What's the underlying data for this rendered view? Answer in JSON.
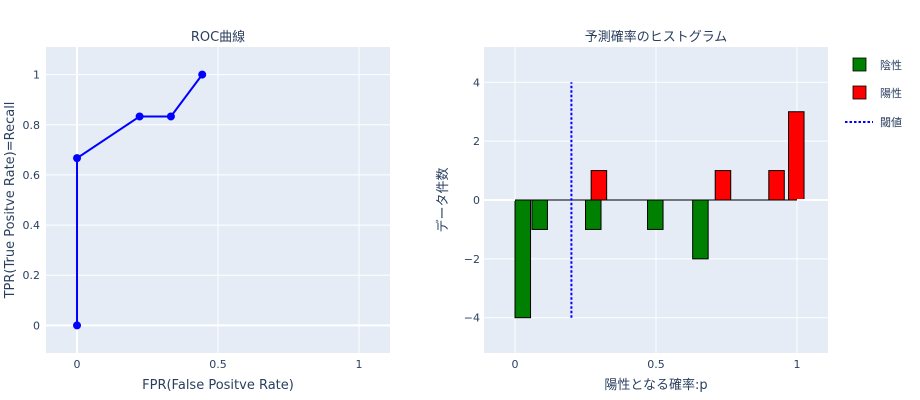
{
  "chart_data": [
    {
      "type": "line",
      "title": "ROC曲線",
      "xlabel": "FPR(False Positve Rate)",
      "ylabel": "TPR(True Positve Rate)=Recall",
      "xlim": [
        -0.11,
        1.11
      ],
      "ylim": [
        -0.11,
        1.11
      ],
      "xticks": [
        0,
        0.5,
        1
      ],
      "yticks": [
        0,
        0.2,
        0.4,
        0.6,
        0.8,
        1
      ],
      "xtick_labels": [
        "0",
        "0.5",
        "1"
      ],
      "ytick_labels": [
        "0",
        "0.2",
        "0.4",
        "0.6",
        "0.8",
        "1"
      ],
      "series": [
        {
          "name": "ROC",
          "color": "#0000ff",
          "x": [
            0,
            0,
            0.222,
            0.333,
            0.444
          ],
          "y": [
            0,
            0.667,
            0.833,
            0.833,
            1.0
          ]
        }
      ]
    },
    {
      "type": "bar",
      "title": "予測確率のヒストグラム",
      "xlabel": "陽性となる確率:p",
      "ylabel": "データ件数",
      "xlim": [
        -0.11,
        1.11
      ],
      "ylim": [
        -5.2,
        5.2
      ],
      "xticks": [
        0,
        0.5,
        1
      ],
      "yticks": [
        -4,
        -2,
        0,
        2,
        4
      ],
      "xtick_labels": [
        "0",
        "0.5",
        "1"
      ],
      "ytick_labels": [
        "−4",
        "−2",
        "0",
        "2",
        "4"
      ],
      "bin_width": 0.055,
      "threshold": {
        "name": "閾値",
        "x": 0.2,
        "y_range": [
          -4,
          4
        ],
        "color": "#0000ff"
      },
      "series": [
        {
          "name": "陰性",
          "color": "#008000",
          "bins": [
            {
              "x": 0.0,
              "value": -4
            },
            {
              "x": 0.06,
              "value": -1
            },
            {
              "x": 0.25,
              "value": -1
            },
            {
              "x": 0.47,
              "value": -1
            },
            {
              "x": 0.63,
              "value": -2
            }
          ]
        },
        {
          "name": "陽性",
          "color": "#ff0000",
          "bins": [
            {
              "x": 0.27,
              "value": 1
            },
            {
              "x": 0.71,
              "value": 1
            },
            {
              "x": 0.9,
              "value": 1
            },
            {
              "x": 0.97,
              "value": 3
            }
          ]
        }
      ]
    }
  ]
}
